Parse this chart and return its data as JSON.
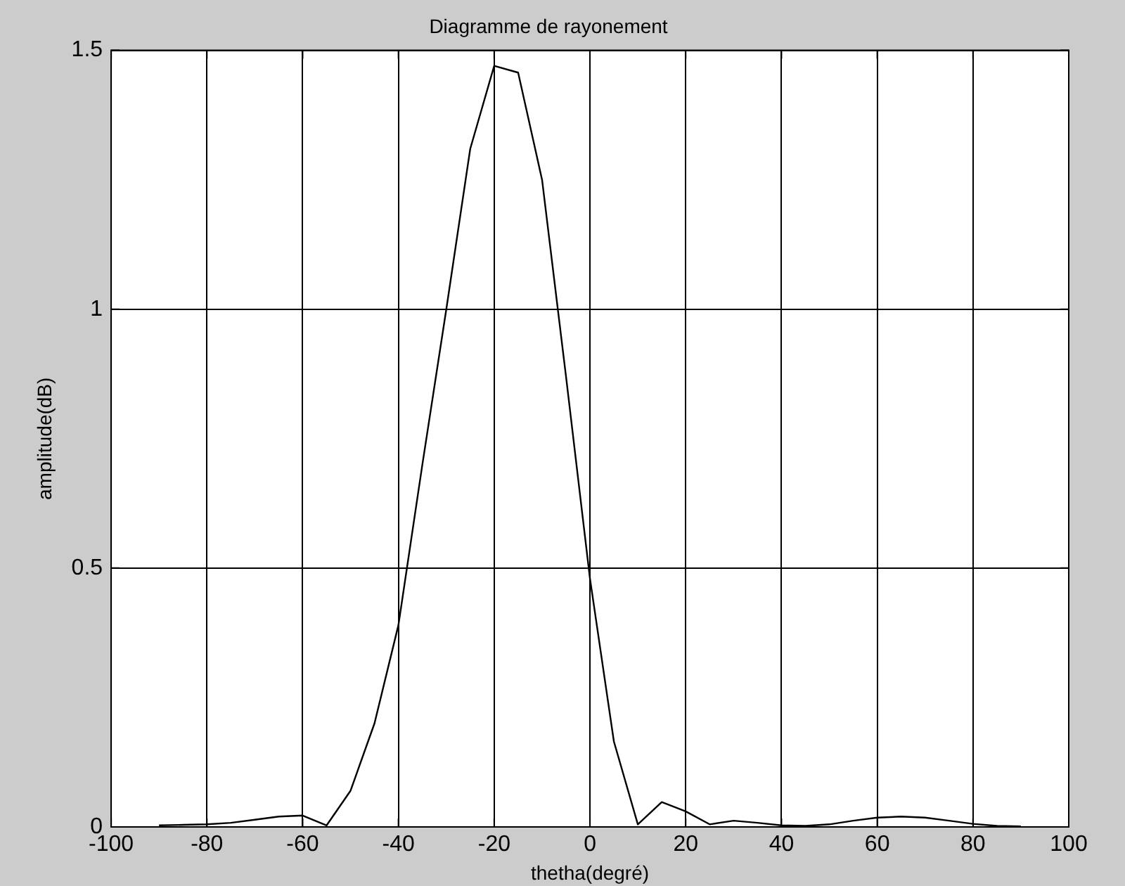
{
  "chart_data": {
    "type": "line",
    "title": "Diagramme de rayonement",
    "xlabel": "thetha(degré)",
    "ylabel": "amplitude(dB)",
    "x": [
      -90,
      -85,
      -80,
      -75,
      -70,
      -65,
      -60,
      -55,
      -50,
      -45,
      -40,
      -35,
      -30,
      -25,
      -20,
      -15,
      -10,
      -5,
      0,
      5,
      10,
      15,
      20,
      25,
      30,
      35,
      40,
      45,
      50,
      55,
      60,
      65,
      70,
      75,
      80,
      85,
      90
    ],
    "series": [
      {
        "color": "#000000",
        "values": [
          0.003,
          0.004,
          0.005,
          0.008,
          0.014,
          0.02,
          0.022,
          0.003,
          0.07,
          0.2,
          0.39,
          0.7,
          1.0,
          1.31,
          1.47,
          1.457,
          1.25,
          0.87,
          0.48,
          0.165,
          0.005,
          0.048,
          0.03,
          0.005,
          0.012,
          0.008,
          0.003,
          0.002,
          0.005,
          0.012,
          0.018,
          0.02,
          0.018,
          0.012,
          0.006,
          0.002,
          0.001
        ]
      }
    ],
    "xlim": [
      -100,
      100
    ],
    "xticks": [
      -100,
      -80,
      -60,
      -40,
      -20,
      0,
      20,
      40,
      60,
      80,
      100
    ],
    "ylim": [
      0,
      1.5
    ],
    "yticks": [
      0,
      0.5,
      1,
      1.5
    ],
    "grid": true,
    "legend": false,
    "marker": "none",
    "line_style": "solid"
  }
}
